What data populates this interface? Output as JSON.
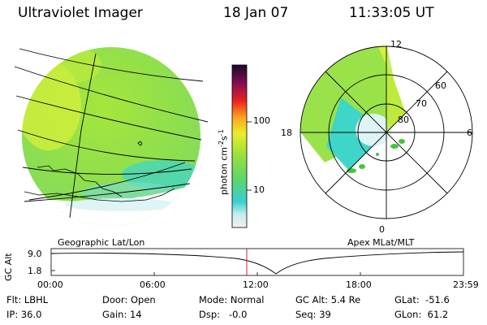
{
  "header": {
    "title": "Ultraviolet Imager",
    "date": "18 Jan 07",
    "time": "11:33:05 UT"
  },
  "colorbar": {
    "label": "photon cm",
    "label_exp1": "-2",
    "label_mid": "s",
    "label_exp2": "-1",
    "tick_100": "100",
    "tick_10": "10"
  },
  "panels": {
    "left_caption": "Geographic Lat/Lon",
    "right_caption": "Apex MLat/MLT"
  },
  "polar": {
    "mlt_12": "12",
    "mlt_18": "18",
    "mlt_6": "6",
    "mlt_0": "0",
    "lat_60": "60",
    "lat_70": "70",
    "lat_80": "80"
  },
  "altitude_plot": {
    "ylabel": "GC Alt",
    "ytick_top": "9.0",
    "ytick_bottom": "1.8",
    "xticks": [
      "00:00",
      "06:00",
      "12:00",
      "18:00",
      "23:59"
    ]
  },
  "footer": {
    "flt": "Flt: LBHL",
    "ip": "IP: 36.0",
    "door": "Door: Open",
    "gain": "Gain: 14",
    "mode": "Mode: Normal",
    "dsp": "Dsp:   -0.0",
    "gcalt": "GC Alt: 5.4 Re",
    "seq": "Seq: 39",
    "glat": "GLat:  -51.6",
    "glon": "GLon:  61.2"
  },
  "colors": {
    "green": "#8ee04c",
    "yellow_green": "#c8ee3a",
    "yellow": "#eaf23a",
    "cyan": "#38d6d0",
    "marker": "#cc2222"
  }
}
